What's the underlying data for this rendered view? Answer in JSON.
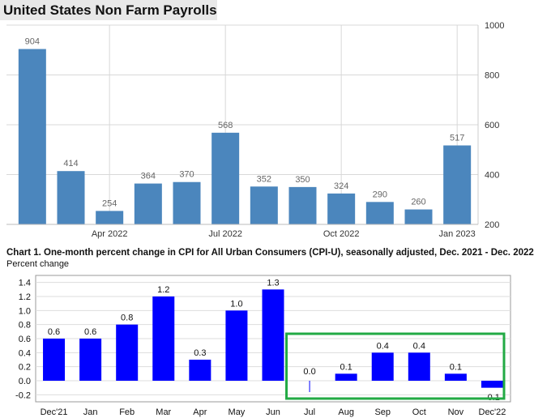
{
  "chart_data": [
    {
      "type": "bar",
      "title": "United States Non Farm Payrolls",
      "values": [
        904,
        414,
        254,
        364,
        370,
        568,
        352,
        350,
        324,
        290,
        260,
        517
      ],
      "x_tick_labels": [
        "Apr 2022",
        "Jul 2022",
        "Oct 2022",
        "Jan 2023"
      ],
      "y_ticks": [
        200,
        400,
        600,
        800,
        1000
      ],
      "ylim": [
        200,
        1000
      ],
      "color": "#4b86bd",
      "grid": true
    },
    {
      "type": "bar",
      "title": "Chart 1. One-month percent change in CPI for All Urban Consumers (CPI-U), seasonally adjusted, Dec. 2021 - Dec. 2022",
      "ylabel": "Percent change",
      "categories": [
        "Dec'21",
        "Jan",
        "Feb",
        "Mar",
        "Apr",
        "May",
        "Jun",
        "Jul",
        "Aug",
        "Sep",
        "Oct",
        "Nov",
        "Dec'22"
      ],
      "values": [
        0.6,
        0.6,
        0.8,
        1.2,
        0.3,
        1.0,
        1.3,
        0.0,
        0.1,
        0.4,
        0.4,
        0.1,
        -0.1
      ],
      "value_labels": [
        "0.6",
        "0.6",
        "0.8",
        "1.2",
        "0.3",
        "1.0",
        "1.3",
        "0.0",
        "0.1",
        "0.4",
        "0.4",
        "0.1",
        "-0.1"
      ],
      "y_ticks": [
        "1.4",
        "1.2",
        "1.0",
        "0.8",
        "0.6",
        "0.4",
        "0.2",
        "0.0",
        "-0.2"
      ],
      "ylim": [
        -0.3,
        1.5
      ],
      "color": "#0000ff",
      "highlight_color": "#22aa44",
      "grid": true
    }
  ]
}
